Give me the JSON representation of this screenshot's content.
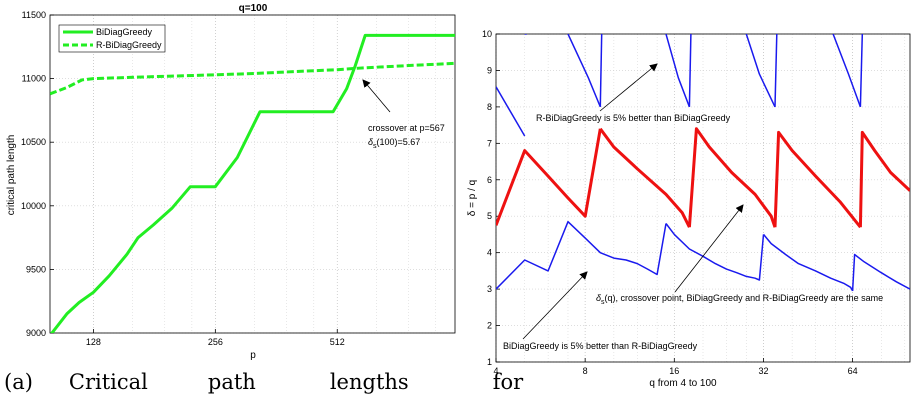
{
  "caption": {
    "label": "(a)",
    "words": [
      "Critical",
      "path",
      "lengths",
      "for"
    ]
  },
  "chart_data": [
    {
      "type": "line",
      "title": "q=100",
      "xlabel": "p",
      "ylabel": "critical path length",
      "xscale": "log2",
      "xlim": [
        100,
        1000
      ],
      "ylim": [
        9000,
        11500
      ],
      "xticks": [
        128,
        256,
        512
      ],
      "yticks": [
        9000,
        9500,
        10000,
        10500,
        11000,
        11500
      ],
      "grid": true,
      "legend": "top-left",
      "series": [
        {
          "name": "BiDiagGreedy",
          "color": "#22ee22",
          "style": "solid",
          "x": [
            100,
            110,
            118,
            128,
            140,
            155,
            165,
            180,
            200,
            222,
            240,
            256,
            290,
            330,
            380,
            440,
            500,
            540,
            567,
            600,
            1000
          ],
          "y": [
            8980,
            9150,
            9240,
            9320,
            9450,
            9620,
            9750,
            9850,
            9980,
            10150,
            10150,
            10150,
            10380,
            10740,
            10740,
            10740,
            10740,
            10920,
            11100,
            11340,
            11340
          ]
        },
        {
          "name": "R-BiDiagGreedy",
          "color": "#22ee22",
          "style": "dashed",
          "x": [
            100,
            110,
            120,
            128,
            160,
            200,
            256,
            320,
            400,
            512,
            567,
            640,
            800,
            1000
          ],
          "y": [
            10880,
            10930,
            10990,
            11000,
            11010,
            11020,
            11030,
            11040,
            11055,
            11070,
            11080,
            11090,
            11105,
            11120
          ]
        }
      ],
      "annotations": [
        {
          "line1": "crossover at p=567",
          "line2_delta": "δ",
          "line2_sub": "s",
          "line2_rest": "(100)=5.67",
          "point": [
            567,
            11080
          ]
        }
      ]
    },
    {
      "type": "line",
      "title": "",
      "xlabel": "q from 4 to 100",
      "ylabel": "δ = p / q",
      "xscale": "log2",
      "xlim": [
        4,
        100
      ],
      "ylim": [
        1,
        10
      ],
      "xticks": [
        4,
        8,
        16,
        32,
        64
      ],
      "yticks": [
        1,
        2,
        3,
        4,
        5,
        6,
        7,
        8,
        9,
        10
      ],
      "grid": true,
      "series": [
        {
          "name": "upper",
          "color": "#1a1aee",
          "width": 1.5,
          "segments": [
            {
              "x": [
                4,
                5
              ],
              "y": [
                8.55,
                7.2
              ]
            },
            {
              "x": [
                5,
                5.08
              ],
              "y": [
                10,
                10
              ]
            },
            {
              "x": [
                7,
                8.2,
                9
              ],
              "y": [
                10,
                8.8,
                8
              ]
            },
            {
              "x": [
                9,
                9.1
              ],
              "y": [
                8,
                10
              ]
            },
            {
              "x": [
                15,
                16.5,
                18
              ],
              "y": [
                10,
                8.8,
                8
              ]
            },
            {
              "x": [
                18,
                18.2
              ],
              "y": [
                8,
                10
              ]
            },
            {
              "x": [
                28,
                31,
                35
              ],
              "y": [
                10,
                8.9,
                8
              ]
            },
            {
              "x": [
                35,
                35.5
              ],
              "y": [
                8,
                10
              ]
            },
            {
              "x": [
                55,
                62,
                68
              ],
              "y": [
                10,
                8.9,
                8
              ]
            },
            {
              "x": [
                68,
                69
              ],
              "y": [
                8,
                10
              ]
            }
          ]
        },
        {
          "name": "middle",
          "color": "#ee1111",
          "width": 3,
          "segments": [
            {
              "x": [
                4,
                5,
                6,
                7,
                8,
                9
              ],
              "y": [
                4.75,
                6.8,
                6.1,
                5.5,
                5.0,
                7.4
              ]
            },
            {
              "x": [
                9,
                10,
                12,
                15,
                17,
                18
              ],
              "y": [
                7.4,
                6.9,
                6.3,
                5.6,
                5.1,
                4.7
              ]
            },
            {
              "x": [
                18,
                19,
                21,
                25,
                30,
                34,
                35
              ],
              "y": [
                4.7,
                7.4,
                6.9,
                6.2,
                5.6,
                5.0,
                4.7
              ]
            },
            {
              "x": [
                35,
                36,
                40,
                48,
                58,
                68
              ],
              "y": [
                4.7,
                7.3,
                6.8,
                6.1,
                5.4,
                4.7
              ]
            },
            {
              "x": [
                68,
                69,
                76,
                86,
                100
              ],
              "y": [
                4.7,
                7.3,
                6.8,
                6.2,
                5.7
              ]
            }
          ]
        },
        {
          "name": "lower",
          "color": "#1a1aee",
          "width": 1.5,
          "segments": [
            {
              "x": [
                4,
                5,
                6,
                7,
                8,
                9,
                10,
                11,
                12,
                13,
                14,
                15
              ],
              "y": [
                3.0,
                3.8,
                3.5,
                4.85,
                4.4,
                4.0,
                3.85,
                3.8,
                3.7,
                3.55,
                3.4,
                4.8
              ]
            },
            {
              "x": [
                15,
                16,
                18,
                20,
                22,
                24,
                26,
                28,
                30,
                31,
                32
              ],
              "y": [
                4.8,
                4.5,
                4.1,
                3.9,
                3.7,
                3.55,
                3.45,
                3.35,
                3.3,
                3.25,
                4.5
              ]
            },
            {
              "x": [
                32,
                34,
                38,
                42,
                48,
                54,
                60,
                63,
                64
              ],
              "y": [
                4.5,
                4.25,
                3.95,
                3.7,
                3.5,
                3.3,
                3.15,
                3.05,
                2.95
              ]
            },
            {
              "x": [
                64,
                65,
                70,
                80,
                90,
                100
              ],
              "y": [
                2.95,
                3.95,
                3.75,
                3.45,
                3.2,
                3.0
              ]
            }
          ]
        }
      ],
      "annotations": [
        {
          "text": "R-BiDiagGreedy is 5% better than BiDiagGreedy"
        },
        {
          "text_delta": "δ",
          "text_sub": "s",
          "text_rest": "(q), crossover point, BiDiagGreedy and R-BiDiagGreedy are the same"
        },
        {
          "text": "BiDiagGreedy is 5% better than R-BiDiagGreedy"
        }
      ]
    }
  ]
}
